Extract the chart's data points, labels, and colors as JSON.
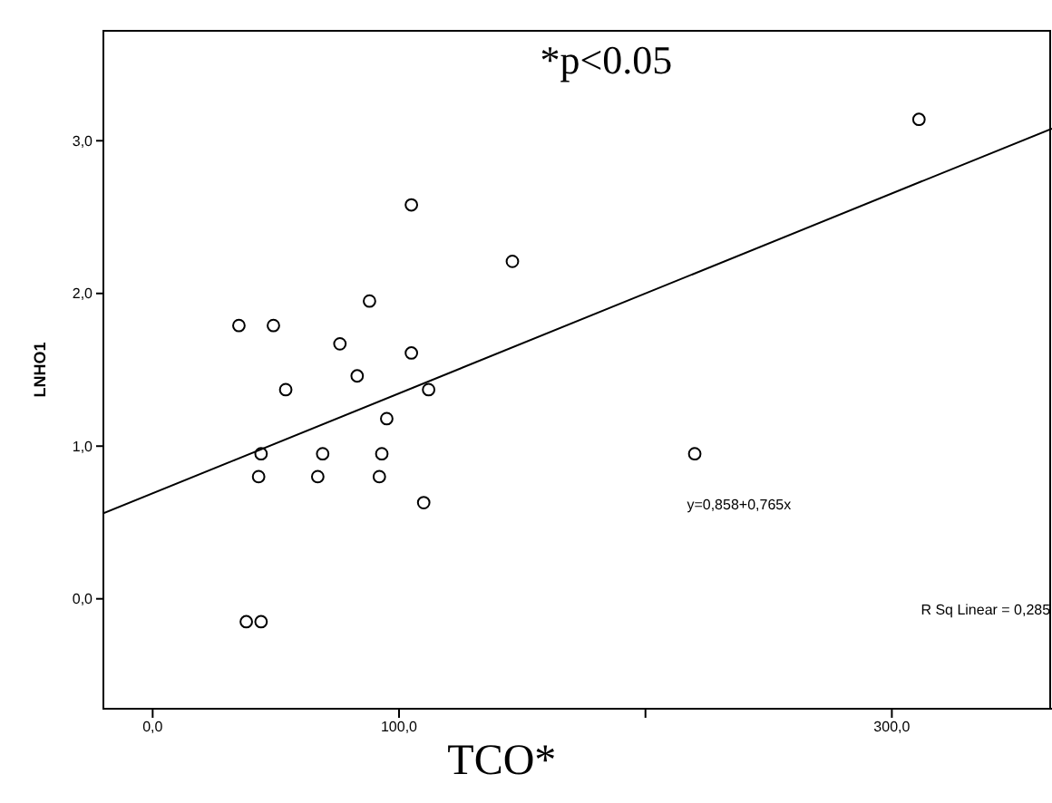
{
  "chart_data": {
    "type": "scatter",
    "xlabel": "TCO*",
    "ylabel": "LNHO1",
    "annotations": [
      "*p<0.05",
      "y=0,858+0,765x",
      "R Sq Linear = 0,285"
    ],
    "xlim": [
      -20,
      365
    ],
    "ylim": [
      -0.72,
      3.72
    ],
    "xticks": [
      {
        "value": 0,
        "label": "0,0"
      },
      {
        "value": 100,
        "label": "100,0"
      },
      {
        "value": 200,
        "label": null
      },
      {
        "value": 300,
        "label": "300,0"
      }
    ],
    "yticks": [
      {
        "value": 0,
        "label": "0,0"
      },
      {
        "value": 1,
        "label": "1,0"
      },
      {
        "value": 2,
        "label": "2,0"
      },
      {
        "value": 3,
        "label": "3,0"
      }
    ],
    "marker": "circle",
    "series": [
      {
        "color": "#000000",
        "x": [
          35,
          49,
          54,
          76,
          83,
          88,
          105,
          105,
          112,
          95,
          44,
          69,
          93,
          43,
          67,
          92,
          110,
          38,
          44,
          146,
          220,
          311
        ],
        "values": [
          1.79,
          1.79,
          1.37,
          1.67,
          1.46,
          1.95,
          2.58,
          1.61,
          1.37,
          1.18,
          0.95,
          0.95,
          0.95,
          0.8,
          0.8,
          0.8,
          0.63,
          -0.15,
          -0.15,
          2.21,
          0.95,
          3.14
        ]
      },
      {
        "type": "line",
        "color": "#000000",
        "line_style": "solid",
        "marker": "none",
        "x": [
          -20,
          365
        ],
        "values": [
          0.56,
          3.08
        ]
      }
    ]
  }
}
